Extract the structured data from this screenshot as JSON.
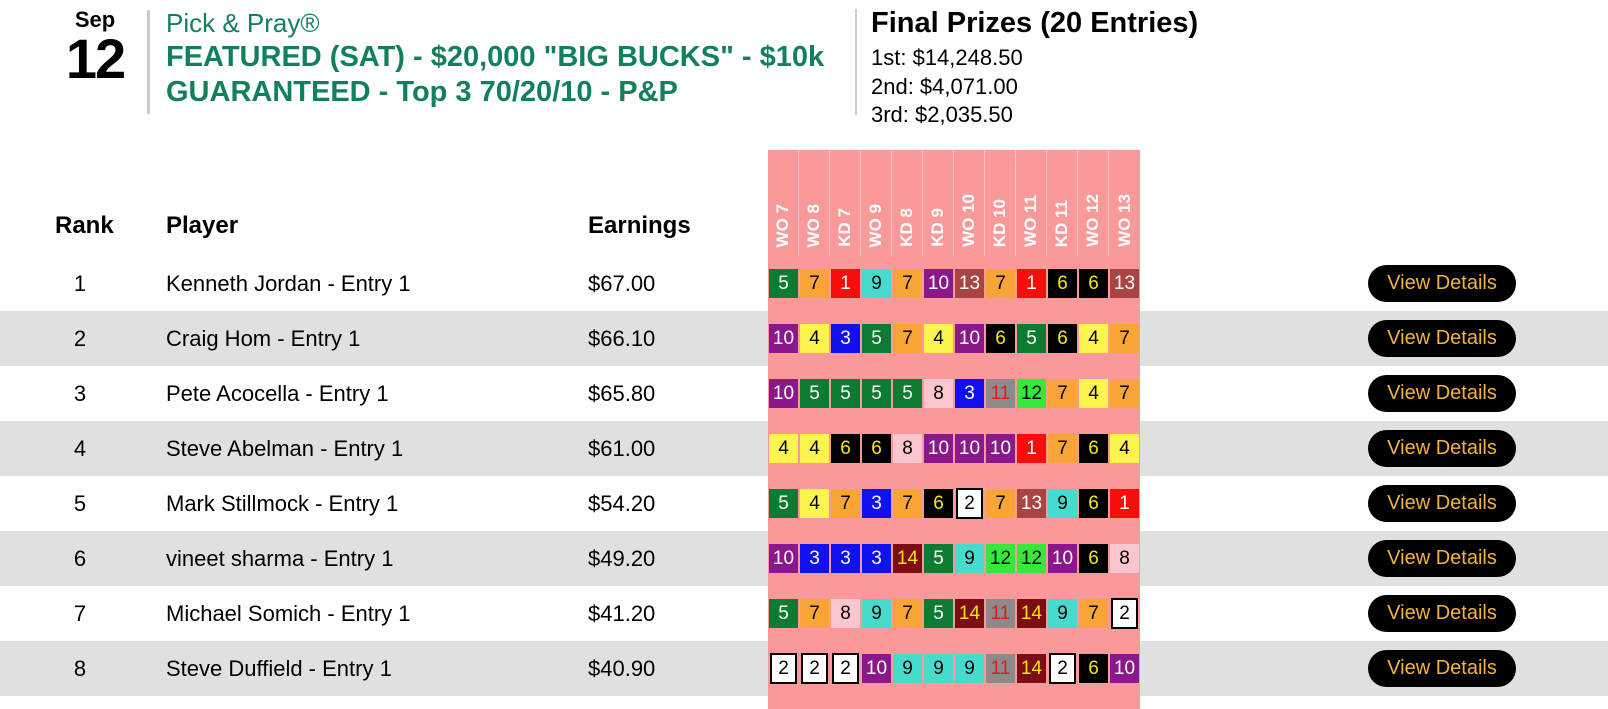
{
  "event": {
    "month": "Sep",
    "day": "12",
    "category": "Pick & Pray®",
    "title": "FEATURED (SAT) - $20,000 \"BIG BUCKS\" - $10k GUARANTEED - Top 3 70/20/10 - P&P"
  },
  "prizes": {
    "heading": "Final Prizes (20 Entries)",
    "items": [
      "1st: $14,248.50",
      "2nd: $4,071.00",
      "3rd: $2,035.50"
    ]
  },
  "table": {
    "columns": {
      "rank": "Rank",
      "player": "Player",
      "earnings": "Earnings"
    },
    "race_headers": [
      "WO 7",
      "WO 8",
      "KD 7",
      "WO 9",
      "KD 8",
      "KD 9",
      "WO 10",
      "KD 10",
      "WO 11",
      "KD 11",
      "WO 12",
      "WO 13"
    ],
    "view_details_label": "View Details",
    "rows": [
      {
        "rank": "1",
        "player": "Kenneth Jordan - Entry 1",
        "earnings": "$67.00",
        "picks": [
          5,
          7,
          1,
          9,
          7,
          10,
          13,
          7,
          1,
          6,
          6,
          13
        ]
      },
      {
        "rank": "2",
        "player": "Craig Hom - Entry 1",
        "earnings": "$66.10",
        "picks": [
          10,
          4,
          3,
          5,
          7,
          4,
          10,
          6,
          5,
          6,
          4,
          7
        ]
      },
      {
        "rank": "3",
        "player": "Pete Acocella - Entry 1",
        "earnings": "$65.80",
        "picks": [
          10,
          5,
          5,
          5,
          5,
          8,
          3,
          11,
          12,
          7,
          4,
          7
        ]
      },
      {
        "rank": "4",
        "player": "Steve Abelman - Entry 1",
        "earnings": "$61.00",
        "picks": [
          4,
          4,
          6,
          6,
          8,
          10,
          10,
          10,
          1,
          7,
          6,
          4
        ]
      },
      {
        "rank": "5",
        "player": "Mark Stillmock - Entry 1",
        "earnings": "$54.20",
        "picks": [
          5,
          4,
          7,
          3,
          7,
          6,
          2,
          7,
          13,
          9,
          6,
          1
        ]
      },
      {
        "rank": "6",
        "player": "vineet sharma - Entry 1",
        "earnings": "$49.20",
        "picks": [
          10,
          3,
          3,
          3,
          14,
          5,
          9,
          12,
          12,
          10,
          6,
          8
        ]
      },
      {
        "rank": "7",
        "player": "Michael Somich - Entry 1",
        "earnings": "$41.20",
        "picks": [
          5,
          7,
          8,
          9,
          7,
          5,
          14,
          11,
          14,
          9,
          7,
          2
        ]
      },
      {
        "rank": "8",
        "player": "Steve Duffield - Entry 1",
        "earnings": "$40.90",
        "picks": [
          2,
          2,
          2,
          10,
          9,
          9,
          9,
          11,
          14,
          2,
          6,
          10
        ]
      }
    ]
  },
  "colors": {
    "accent_green": "#12805F",
    "header_pink": "#FA999A",
    "row_stripe": "#E0E0E0",
    "button_bg": "#000000",
    "button_text": "#F2B33D",
    "saddle_cloth": {
      "1": {
        "bg": "#F80D0D",
        "fg": "#FFFFFF"
      },
      "2": {
        "bg": "#FFFFFF",
        "fg": "#000000",
        "border": "#000000"
      },
      "3": {
        "bg": "#1111F0",
        "fg": "#FFFFFF"
      },
      "4": {
        "bg": "#FDF44F",
        "fg": "#000000"
      },
      "5": {
        "bg": "#0D7B31",
        "fg": "#FFFFFF"
      },
      "6": {
        "bg": "#000000",
        "fg": "#F5E616"
      },
      "7": {
        "bg": "#F9A436",
        "fg": "#000000"
      },
      "8": {
        "bg": "#FBC6D0",
        "fg": "#000000"
      },
      "9": {
        "bg": "#45DCCE",
        "fg": "#000000"
      },
      "10": {
        "bg": "#8A188A",
        "fg": "#FFFFFF"
      },
      "11": {
        "bg": "#8B8B8B",
        "fg": "#F01414"
      },
      "12": {
        "bg": "#35E93B",
        "fg": "#000000"
      },
      "13": {
        "bg": "#A84543",
        "fg": "#FFFFFF"
      },
      "14": {
        "bg": "#7D0D12",
        "fg": "#F5E616"
      }
    }
  }
}
